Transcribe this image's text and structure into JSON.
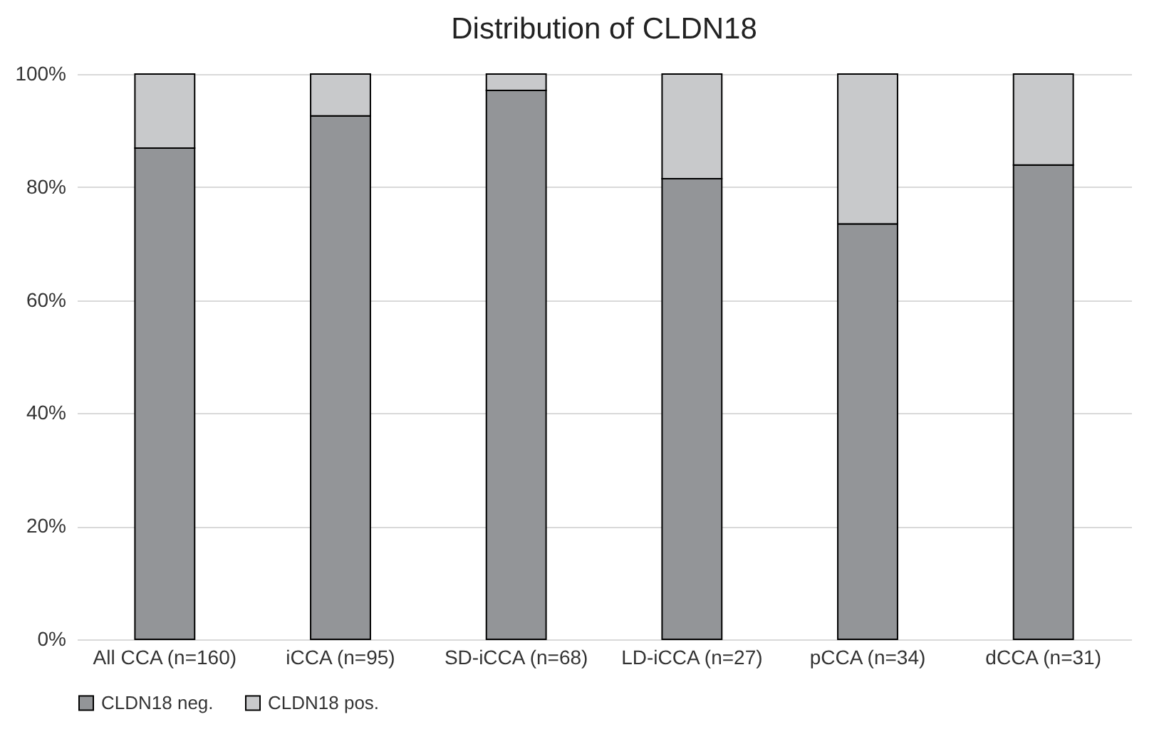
{
  "chart_data": {
    "type": "bar",
    "title": "Distribution of CLDN18",
    "stacked": true,
    "categories": [
      "All CCA (n=160)",
      "iCCA (n=95)",
      "SD-iCCA (n=68)",
      "LD-iCCA (n=27)",
      "pCCA (n=34)",
      "dCCA (n=31)"
    ],
    "series": [
      {
        "name": "CLDN18 neg.",
        "color": "#939598",
        "values": [
          86.9,
          92.6,
          97.1,
          81.5,
          73.5,
          83.9
        ]
      },
      {
        "name": "CLDN18 pos.",
        "color": "#c8c9cb",
        "values": [
          13.1,
          7.4,
          2.9,
          18.5,
          26.5,
          16.1
        ]
      }
    ],
    "ylim": [
      0,
      100
    ],
    "yticks": [
      {
        "value": 0,
        "label": "0%"
      },
      {
        "value": 20,
        "label": "20%"
      },
      {
        "value": 40,
        "label": "40%"
      },
      {
        "value": 60,
        "label": "60%"
      },
      {
        "value": 80,
        "label": "80%"
      },
      {
        "value": 100,
        "label": "100%"
      }
    ],
    "grid": "y",
    "legend": "bottom"
  }
}
